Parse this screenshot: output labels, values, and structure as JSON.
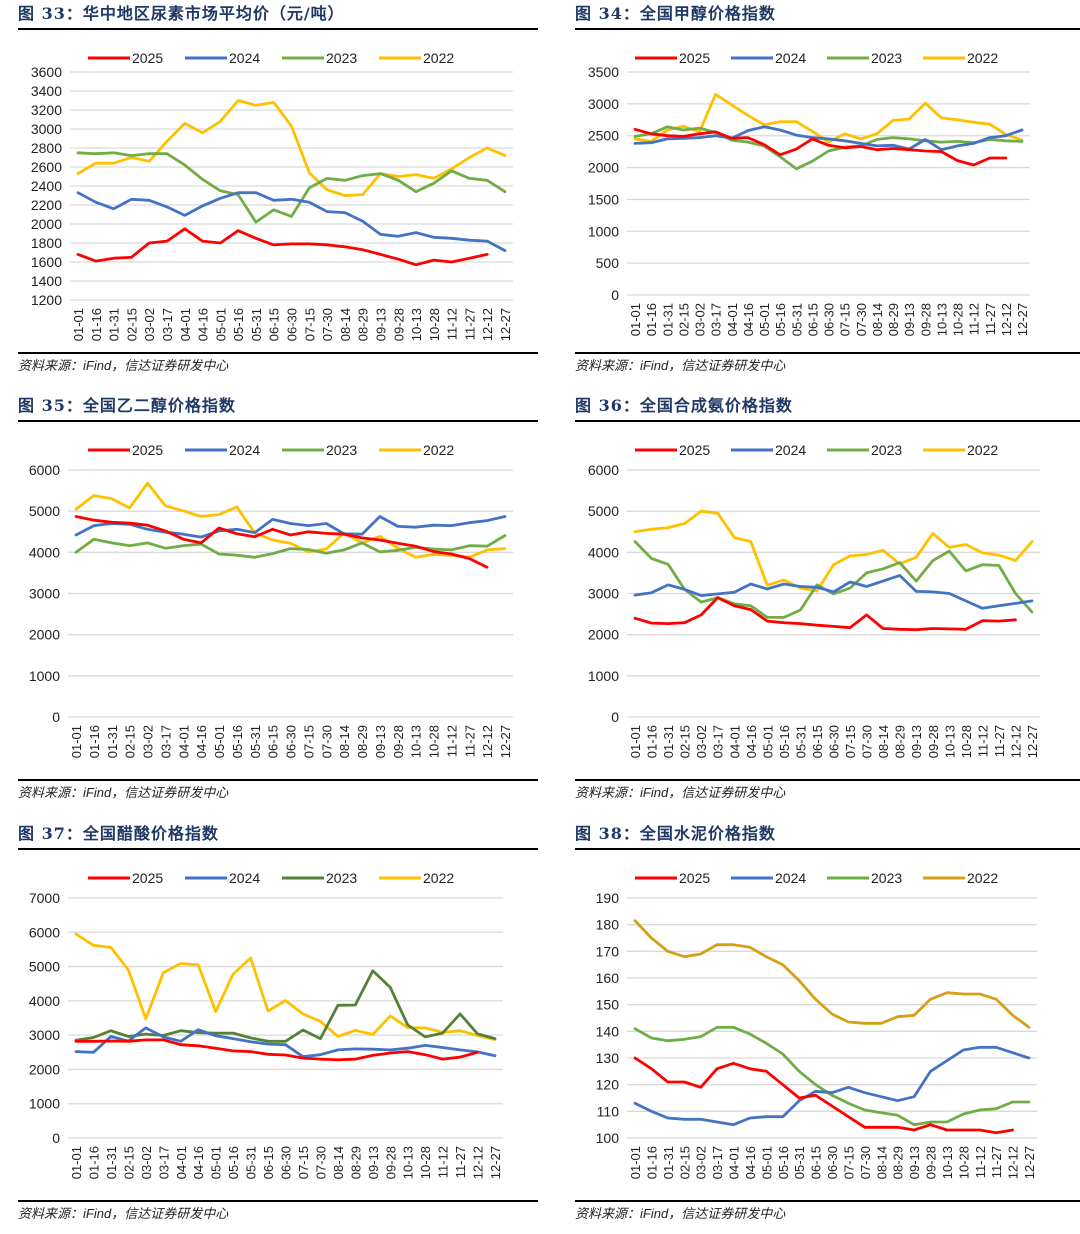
{
  "source_prefix": "资料来源：",
  "source_ifind": "iFind",
  "source_suffix": "，信达证券研发中心",
  "chart_data": [
    {
      "id": "fig33",
      "type": "line",
      "title": "图 33：华中地区尿素市场平均价（元/吨）",
      "xlabel": "",
      "ylabel": "",
      "ylim": [
        1200,
        3600
      ],
      "yticks": [
        1200,
        1400,
        1600,
        1800,
        2000,
        2200,
        2400,
        2600,
        2800,
        3000,
        3200,
        3400,
        3600
      ],
      "grid": true,
      "legend": "top",
      "categories": [
        "01-01",
        "01-16",
        "01-31",
        "02-15",
        "03-02",
        "03-17",
        "04-01",
        "04-16",
        "05-01",
        "05-16",
        "05-31",
        "06-15",
        "06-30",
        "07-15",
        "07-30",
        "08-14",
        "08-29",
        "09-13",
        "09-28",
        "10-13",
        "10-28",
        "11-12",
        "11-27",
        "12-12",
        "12-27"
      ],
      "series": [
        {
          "name": "2025",
          "color": "#ff0000",
          "values": [
            1680,
            1610,
            1640,
            1650,
            1800,
            1820,
            1950,
            1820,
            1800,
            1930,
            1850,
            1780,
            1790,
            1790,
            1780,
            1760,
            1730,
            1680,
            1630,
            1570,
            1620,
            1600,
            1640,
            1680,
            null
          ]
        },
        {
          "name": "2024",
          "color": "#4472c4",
          "values": [
            2330,
            2230,
            2160,
            2260,
            2250,
            2180,
            2090,
            2190,
            2270,
            2330,
            2330,
            2250,
            2260,
            2230,
            2130,
            2120,
            2030,
            1890,
            1870,
            1910,
            1860,
            1850,
            1830,
            1820,
            1720
          ]
        },
        {
          "name": "2023",
          "color": "#70ad47",
          "values": [
            2750,
            2740,
            2750,
            2720,
            2740,
            2740,
            2620,
            2470,
            2350,
            2310,
            2020,
            2150,
            2080,
            2380,
            2480,
            2460,
            2510,
            2530,
            2460,
            2340,
            2430,
            2560,
            2480,
            2460,
            2340
          ]
        },
        {
          "name": "2022",
          "color": "#ffc000",
          "values": [
            2530,
            2640,
            2640,
            2700,
            2660,
            2870,
            3060,
            2960,
            3080,
            3300,
            3250,
            3280,
            3030,
            2540,
            2360,
            2300,
            2310,
            2530,
            2500,
            2520,
            2480,
            2580,
            2700,
            2800,
            2720
          ]
        }
      ]
    },
    {
      "id": "fig34",
      "type": "line",
      "title": "图 34：全国甲醇价格指数",
      "xlabel": "",
      "ylabel": "",
      "ylim": [
        0,
        3500
      ],
      "yticks": [
        0,
        500,
        1000,
        1500,
        2000,
        2500,
        3000,
        3500
      ],
      "grid": true,
      "legend": "top",
      "categories": [
        "01-01",
        "01-16",
        "01-31",
        "02-15",
        "03-02",
        "03-17",
        "04-01",
        "04-16",
        "05-01",
        "05-16",
        "05-31",
        "06-15",
        "06-30",
        "07-15",
        "07-30",
        "08-14",
        "08-29",
        "09-13",
        "09-28",
        "10-13",
        "10-28",
        "11-12",
        "11-27",
        "12-12",
        "12-27"
      ],
      "series": [
        {
          "name": "2025",
          "color": "#ff0000",
          "values": [
            2600,
            2530,
            2500,
            2490,
            2530,
            2560,
            2460,
            2470,
            2360,
            2200,
            2290,
            2450,
            2350,
            2310,
            2330,
            2280,
            2300,
            2280,
            2260,
            2250,
            2110,
            2040,
            2150,
            2150,
            null
          ]
        },
        {
          "name": "2024",
          "color": "#4472c4",
          "values": [
            2380,
            2390,
            2450,
            2460,
            2470,
            2500,
            2460,
            2580,
            2640,
            2590,
            2510,
            2470,
            2450,
            2420,
            2380,
            2340,
            2350,
            2290,
            2440,
            2280,
            2340,
            2380,
            2470,
            2500,
            2590
          ]
        },
        {
          "name": "2023",
          "color": "#70ad47",
          "values": [
            2490,
            2530,
            2640,
            2590,
            2620,
            2550,
            2430,
            2400,
            2340,
            2170,
            1980,
            2100,
            2260,
            2320,
            2340,
            2440,
            2470,
            2450,
            2420,
            2400,
            2410,
            2390,
            2440,
            2420,
            2410
          ]
        },
        {
          "name": "2022",
          "color": "#ffc000",
          "values": [
            2450,
            2410,
            2590,
            2650,
            2560,
            3150,
            2980,
            2820,
            2670,
            2720,
            2720,
            2570,
            2400,
            2530,
            2450,
            2530,
            2740,
            2760,
            3010,
            2780,
            2750,
            2710,
            2680,
            2520,
            2430
          ]
        }
      ]
    },
    {
      "id": "fig35",
      "type": "line",
      "title": "图 35：全国乙二醇价格指数",
      "xlabel": "",
      "ylabel": "",
      "ylim": [
        0,
        6000
      ],
      "yticks": [
        0,
        1000,
        2000,
        3000,
        4000,
        5000,
        6000
      ],
      "grid": true,
      "legend": "top",
      "categories": [
        "01-01",
        "01-16",
        "01-31",
        "02-15",
        "03-02",
        "03-17",
        "04-01",
        "04-16",
        "05-01",
        "05-16",
        "05-31",
        "06-15",
        "06-30",
        "07-15",
        "07-30",
        "08-14",
        "08-29",
        "09-13",
        "09-28",
        "10-13",
        "10-28",
        "11-12",
        "11-27",
        "12-12",
        "12-27"
      ],
      "series": [
        {
          "name": "2025",
          "color": "#ff0000",
          "values": [
            4870,
            4780,
            4730,
            4710,
            4660,
            4520,
            4320,
            4230,
            4590,
            4450,
            4380,
            4560,
            4420,
            4500,
            4460,
            4440,
            4350,
            4300,
            4220,
            4150,
            4020,
            3960,
            3850,
            3640,
            null
          ]
        },
        {
          "name": "2024",
          "color": "#4472c4",
          "values": [
            4420,
            4650,
            4700,
            4680,
            4560,
            4490,
            4440,
            4370,
            4520,
            4560,
            4480,
            4800,
            4700,
            4650,
            4700,
            4450,
            4440,
            4870,
            4630,
            4610,
            4660,
            4650,
            4720,
            4770,
            4870
          ]
        },
        {
          "name": "2023",
          "color": "#70ad47",
          "values": [
            4000,
            4320,
            4230,
            4160,
            4230,
            4100,
            4160,
            4200,
            3960,
            3930,
            3880,
            3970,
            4090,
            4070,
            3980,
            4060,
            4230,
            4010,
            4050,
            4120,
            4080,
            4060,
            4160,
            4150,
            4410
          ]
        },
        {
          "name": "2022",
          "color": "#ffc000",
          "values": [
            5050,
            5380,
            5300,
            5080,
            5680,
            5130,
            5010,
            4870,
            4920,
            5100,
            4470,
            4300,
            4220,
            4010,
            4080,
            4470,
            4230,
            4390,
            4100,
            3880,
            3950,
            3930,
            3880,
            4060,
            4090
          ]
        }
      ]
    },
    {
      "id": "fig36",
      "type": "line",
      "title": "图 36：全国合成氨价格指数",
      "xlabel": "",
      "ylabel": "",
      "ylim": [
        0,
        6000
      ],
      "yticks": [
        0,
        1000,
        2000,
        3000,
        4000,
        5000,
        6000
      ],
      "grid": true,
      "legend": "top",
      "categories": [
        "01-01",
        "01-16",
        "01-31",
        "02-15",
        "03-02",
        "03-17",
        "04-01",
        "04-16",
        "05-01",
        "05-16",
        "05-31",
        "06-15",
        "06-30",
        "07-15",
        "07-30",
        "08-14",
        "08-29",
        "09-13",
        "09-28",
        "10-13",
        "10-28",
        "11-12",
        "11-27",
        "12-12",
        "12-27"
      ],
      "series": [
        {
          "name": "2025",
          "color": "#ff0000",
          "values": [
            2400,
            2280,
            2270,
            2290,
            2480,
            2900,
            2700,
            2610,
            2330,
            2290,
            2270,
            2230,
            2200,
            2170,
            2480,
            2150,
            2130,
            2120,
            2150,
            2140,
            2130,
            2340,
            2330,
            2360,
            null
          ]
        },
        {
          "name": "2024",
          "color": "#4472c4",
          "values": [
            2960,
            3020,
            3210,
            3100,
            2950,
            2990,
            3030,
            3230,
            3110,
            3230,
            3170,
            3150,
            3040,
            3280,
            3170,
            3300,
            3440,
            3050,
            3040,
            3000,
            2820,
            2640,
            2700,
            2760,
            2820
          ]
        },
        {
          "name": "2023",
          "color": "#70ad47",
          "values": [
            4260,
            3850,
            3710,
            3100,
            2790,
            2900,
            2750,
            2700,
            2420,
            2420,
            2600,
            3210,
            2990,
            3130,
            3500,
            3600,
            3750,
            3300,
            3800,
            4030,
            3550,
            3700,
            3680,
            3000,
            2550
          ]
        },
        {
          "name": "2022",
          "color": "#ffc000",
          "values": [
            4500,
            4560,
            4600,
            4700,
            5000,
            4950,
            4360,
            4260,
            3200,
            3330,
            3130,
            3060,
            3700,
            3910,
            3950,
            4050,
            3720,
            3880,
            4460,
            4120,
            4190,
            3990,
            3930,
            3800,
            4260
          ]
        }
      ]
    },
    {
      "id": "fig37",
      "type": "line",
      "title": "图 37：全国醋酸价格指数",
      "xlabel": "",
      "ylabel": "",
      "ylim": [
        0,
        7000
      ],
      "yticks": [
        0,
        1000,
        2000,
        3000,
        4000,
        5000,
        6000,
        7000
      ],
      "grid": true,
      "legend": "top",
      "categories": [
        "01-01",
        "01-16",
        "01-31",
        "02-15",
        "03-02",
        "03-17",
        "04-01",
        "04-16",
        "05-01",
        "05-16",
        "05-31",
        "06-15",
        "06-30",
        "07-15",
        "07-30",
        "08-14",
        "08-29",
        "09-13",
        "09-28",
        "10-13",
        "10-28",
        "11-12",
        "11-27",
        "12-12",
        "12-27"
      ],
      "series": [
        {
          "name": "2025",
          "color": "#ff0000",
          "values": [
            2820,
            2820,
            2830,
            2820,
            2860,
            2860,
            2720,
            2690,
            2620,
            2540,
            2520,
            2440,
            2420,
            2330,
            2300,
            2280,
            2300,
            2410,
            2480,
            2520,
            2430,
            2300,
            2360,
            2500,
            null
          ]
        },
        {
          "name": "2024",
          "color": "#4472c4",
          "values": [
            2520,
            2500,
            2960,
            2830,
            3210,
            2950,
            2820,
            3160,
            2980,
            2900,
            2810,
            2740,
            2720,
            2370,
            2430,
            2570,
            2600,
            2590,
            2570,
            2620,
            2700,
            2640,
            2570,
            2510,
            2400
          ]
        },
        {
          "name": "2023",
          "color": "#548235",
          "values": [
            2850,
            2930,
            3130,
            2960,
            3030,
            2990,
            3130,
            3070,
            3060,
            3060,
            2920,
            2820,
            2820,
            3150,
            2900,
            3870,
            3880,
            4880,
            4390,
            3300,
            2950,
            3060,
            3620,
            3040,
            2900
          ]
        },
        {
          "name": "2022",
          "color": "#ffc000",
          "values": [
            5950,
            5620,
            5560,
            4900,
            3480,
            4820,
            5090,
            5050,
            3690,
            4780,
            5250,
            3700,
            4010,
            3620,
            3400,
            2960,
            3140,
            3020,
            3560,
            3220,
            3210,
            3080,
            3130,
            2990,
            2870
          ]
        }
      ]
    },
    {
      "id": "fig38",
      "type": "line",
      "title": "图 38：全国水泥价格指数",
      "xlabel": "",
      "ylabel": "",
      "ylim": [
        100,
        190
      ],
      "yticks": [
        100,
        110,
        120,
        130,
        140,
        150,
        160,
        170,
        180,
        190
      ],
      "grid": true,
      "legend": "top",
      "categories": [
        "01-01",
        "01-16",
        "01-31",
        "02-15",
        "03-02",
        "03-17",
        "04-01",
        "04-16",
        "05-01",
        "05-16",
        "05-31",
        "06-15",
        "06-30",
        "07-15",
        "07-30",
        "08-14",
        "08-29",
        "09-13",
        "09-28",
        "10-13",
        "10-28",
        "11-12",
        "11-27",
        "12-12",
        "12-27"
      ],
      "series": [
        {
          "name": "2025",
          "color": "#ff0000",
          "values": [
            130,
            126,
            121,
            121,
            119,
            126,
            128,
            126,
            125,
            120,
            115,
            116,
            112,
            108,
            104,
            104,
            104,
            103,
            105,
            103,
            103,
            103,
            102,
            103,
            null
          ]
        },
        {
          "name": "2024",
          "color": "#4472c4",
          "values": [
            113,
            110,
            107.5,
            107,
            107,
            106,
            105,
            107.5,
            108,
            108,
            114,
            117.5,
            117,
            119,
            117,
            115.5,
            114,
            115.5,
            125,
            129,
            133,
            134,
            134,
            132,
            130
          ]
        },
        {
          "name": "2023",
          "color": "#70ad47",
          "values": [
            141,
            137.5,
            136.5,
            137,
            138,
            141.5,
            141.5,
            139,
            135.5,
            131.5,
            125,
            120,
            116,
            113,
            110.5,
            109.5,
            108.5,
            105,
            106,
            106,
            109,
            110.5,
            111,
            113.5,
            113.5
          ]
        },
        {
          "name": "2022",
          "color": "#d4a017",
          "values": [
            181.5,
            175,
            170,
            168,
            169,
            172.5,
            172.5,
            171.5,
            168,
            165,
            159,
            152,
            146.5,
            143.5,
            143,
            143,
            145.5,
            146,
            152,
            154.5,
            154,
            154,
            152,
            146,
            141.5
          ]
        }
      ]
    }
  ]
}
